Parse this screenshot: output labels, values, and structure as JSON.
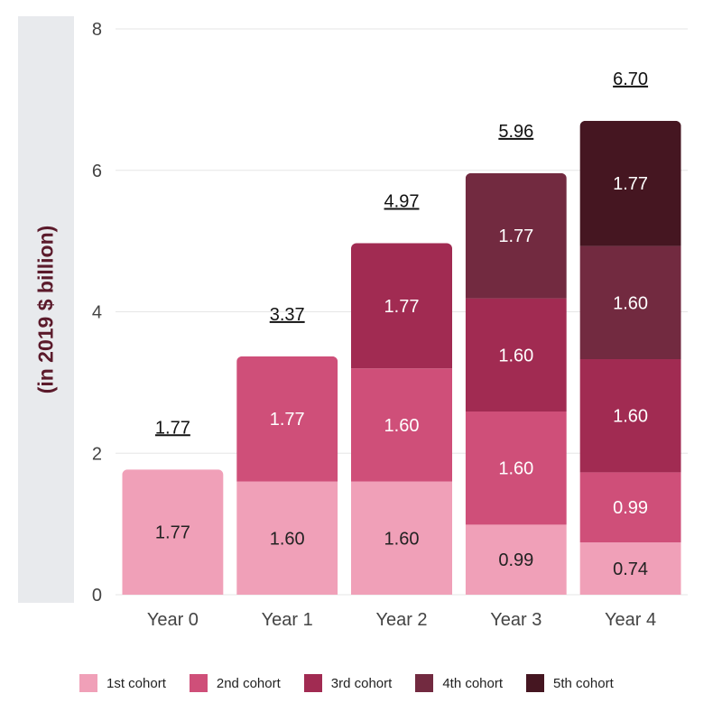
{
  "chart_data": {
    "type": "bar",
    "stacked": true,
    "ylabel": "(in 2019 $ billion)",
    "xlabel": "",
    "ylim": [
      0,
      8
    ],
    "yticks": [
      "0",
      "2",
      "4",
      "6",
      "8"
    ],
    "grid": true,
    "legend_position": "bottom",
    "categories": [
      "Year 0",
      "Year 1",
      "Year 2",
      "Year 3",
      "Year 4"
    ],
    "totals": [
      "1.77",
      "3.37",
      "4.97",
      "5.96",
      "6.70"
    ],
    "series": [
      {
        "name": "1st cohort",
        "color": "#f0a0b8",
        "values": [
          1.77,
          1.6,
          1.6,
          0.99,
          0.74
        ],
        "labels": [
          "1.77",
          "1.60",
          "1.60",
          "0.99",
          "0.74"
        ]
      },
      {
        "name": "2nd cohort",
        "color": "#cf4f79",
        "values": [
          0,
          1.77,
          1.6,
          1.6,
          0.99
        ],
        "labels": [
          "",
          "1.77",
          "1.60",
          "1.60",
          "0.99"
        ]
      },
      {
        "name": "3rd cohort",
        "color": "#a12b52",
        "values": [
          0,
          0,
          1.77,
          1.6,
          1.6
        ],
        "labels": [
          "",
          "",
          "1.77",
          "1.60",
          "1.60"
        ]
      },
      {
        "name": "4th cohort",
        "color": "#722a40",
        "values": [
          0,
          0,
          0,
          1.77,
          1.6
        ],
        "labels": [
          "",
          "",
          "",
          "1.77",
          "1.60"
        ]
      },
      {
        "name": "5th cohort",
        "color": "#451621",
        "values": [
          0,
          0,
          0,
          0,
          1.77
        ],
        "labels": [
          "",
          "",
          "",
          "",
          "1.77"
        ]
      }
    ]
  }
}
